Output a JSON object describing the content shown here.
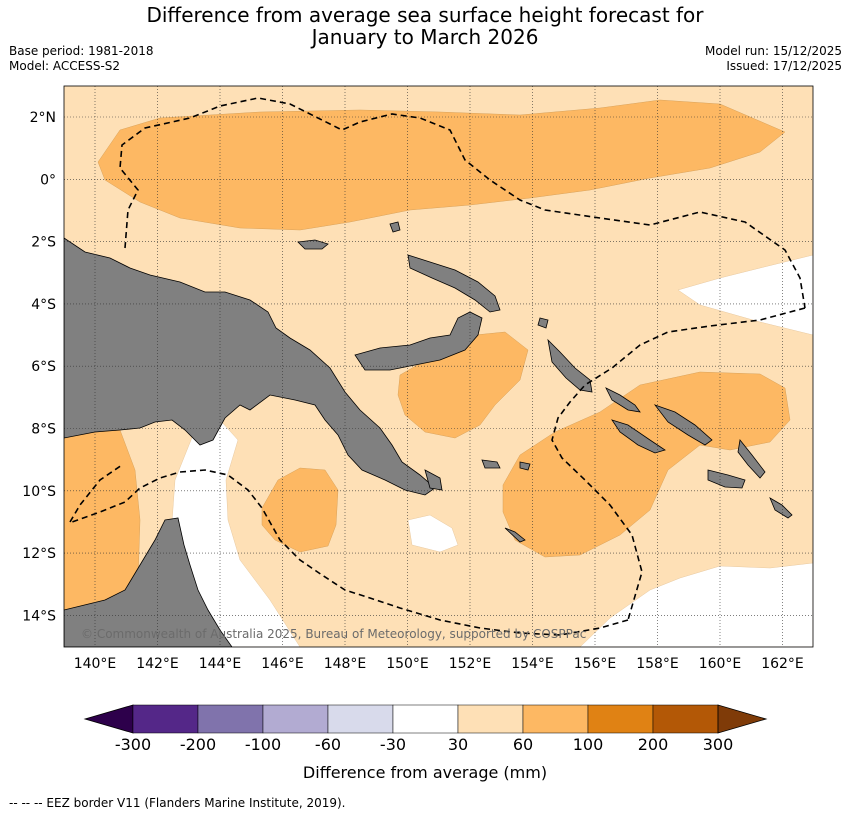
{
  "title_line1": "Difference from average sea surface height forecast for",
  "title_line2": "January to March 2026",
  "meta": {
    "base_period": "Base period: 1981-2018",
    "model": "Model: ACCESS-S2",
    "model_run": "Model run: 15/12/2025",
    "issued": "Issued: 17/12/2025"
  },
  "copyright": "© Commonwealth of Australia 2025, Bureau of Meteorology, supported by COSPPac",
  "axes": {
    "lon_ticks": [
      "140°E",
      "142°E",
      "144°E",
      "146°E",
      "148°E",
      "150°E",
      "152°E",
      "154°E",
      "156°E",
      "158°E",
      "160°E",
      "162°E"
    ],
    "lat_ticks": [
      "2°N",
      "0°",
      "2°S",
      "4°S",
      "6°S",
      "8°S",
      "10°S",
      "12°S",
      "14°S"
    ]
  },
  "colorbar": {
    "label": "Difference from average (mm)",
    "ticks": [
      "-300",
      "-200",
      "-100",
      "-60",
      "-30",
      "30",
      "60",
      "100",
      "200",
      "300"
    ],
    "colors": [
      "#2d004b",
      "#542788",
      "#8073ac",
      "#b2abd2",
      "#d8daeb",
      "#ffffff",
      "#fee0b6",
      "#fdb863",
      "#e08214",
      "#b35806",
      "#7f3b08"
    ]
  },
  "colors": {
    "land": "#808080",
    "light_orange": "#fee0b6",
    "medium_orange": "#fdb863"
  },
  "footer": "--  --  -- EEZ border V11 (Flanders Marine Institute, 2019)."
}
